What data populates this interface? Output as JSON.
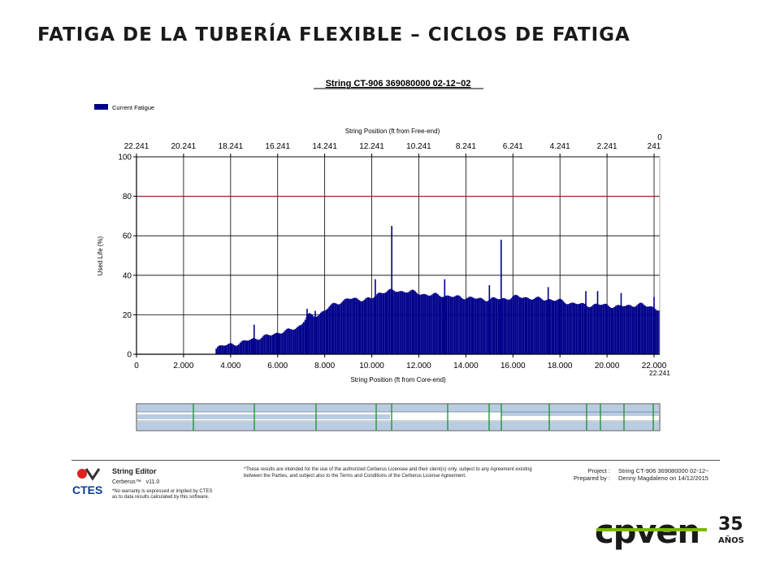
{
  "slide": {
    "title": "FATIGA DE LA TUBERÍA FLEXIBLE – CICLOS DE FATIGA"
  },
  "chart_data": {
    "type": "bar",
    "title": "String CT-906 369080000 02-12~02",
    "legend": {
      "label": "Current Fatigue",
      "placement": "top-left",
      "color": "#00008B"
    },
    "xlabel": "String Position (ft from Core-end)",
    "x2label": "String Position (ft from Free-end)",
    "ylabel": "Used Life (%)",
    "xlim": [
      0,
      22241
    ],
    "ylim": [
      0,
      100
    ],
    "xticks": [
      "0",
      "2.000",
      "4.000",
      "6.000",
      "8.000",
      "10.000",
      "12.000",
      "14.000",
      "16.000",
      "18.000",
      "20.000",
      "22.000"
    ],
    "xticks_values": [
      0,
      2000,
      4000,
      6000,
      8000,
      10000,
      12000,
      14000,
      16000,
      18000,
      20000,
      22000
    ],
    "x_end_label": "22.241",
    "x2ticks": [
      "22.241",
      "20.241",
      "18.241",
      "16.241",
      "14.241",
      "12.241",
      "10.241",
      "8.241",
      "6.241",
      "4.241",
      "2.241",
      "241",
      "0"
    ],
    "yticks": [
      "0",
      "20",
      "40",
      "60",
      "80",
      "100"
    ],
    "yticks_values": [
      0,
      20,
      40,
      60,
      80,
      100
    ],
    "reference_line": {
      "y": 80,
      "color": "#8B2A2A"
    },
    "grid": true,
    "series": [
      {
        "name": "Current Fatigue",
        "color": "#00008B",
        "profile_x": [
          0,
          3300,
          3400,
          3600,
          4000,
          4500,
          5000,
          5500,
          6000,
          6500,
          7000,
          7300,
          7500,
          7800,
          8000,
          8200,
          8500,
          9000,
          9500,
          10000,
          10300,
          10500,
          11000,
          11500,
          12000,
          12500,
          13000,
          13500,
          14000,
          14500,
          15000,
          15500,
          16000,
          16500,
          17000,
          17500,
          18000,
          18500,
          19000,
          19500,
          20000,
          20500,
          21000,
          21500,
          22000,
          22241
        ],
        "profile_y": [
          0,
          0,
          4,
          4,
          5,
          6,
          8,
          9,
          11,
          12,
          15,
          20,
          19,
          21,
          22,
          24,
          26,
          28,
          28,
          28,
          31,
          32,
          32,
          32,
          31,
          30,
          30,
          29,
          29,
          28,
          28,
          28,
          29,
          29,
          28,
          28,
          27,
          26,
          25,
          25,
          25,
          24,
          25,
          25,
          24,
          22
        ],
        "spikes_x": [
          5000,
          7250,
          7600,
          10150,
          10850,
          13100,
          15000,
          15500,
          17500,
          19100,
          19600,
          20600,
          22000
        ],
        "spikes_y": [
          15,
          23,
          22,
          38,
          65,
          38,
          35,
          58,
          34,
          32,
          32,
          31,
          29
        ]
      }
    ]
  },
  "footer": {
    "app_name": "String Editor",
    "product": "Cerberus™",
    "version": "v11.0",
    "vendor": "CTES",
    "warranty_line1": "*No warranty is expressed or implied by CTES",
    "warranty_line2": "as to data results calculated by this software.",
    "disclaimer_line1": "*These results are intended for the use of the authorized Cerberus Licensee and their client(s) only, subject to any Agreement existing",
    "disclaimer_line2": "between the Parties, and subject also to the Terms and Conditions of the Cerberus License Agreement.",
    "project_label": "Project :",
    "project_value": "String CT-906 369080000 02-12~",
    "prepared_label": "Prepared by :",
    "prepared_value": "Denny  Magdaleno on 14/12/2015"
  },
  "brand": {
    "name": "cpven",
    "years": "35",
    "years_word": "AÑOS",
    "color_dark": "#1a1a1a",
    "color_accent": "#7ab800"
  }
}
